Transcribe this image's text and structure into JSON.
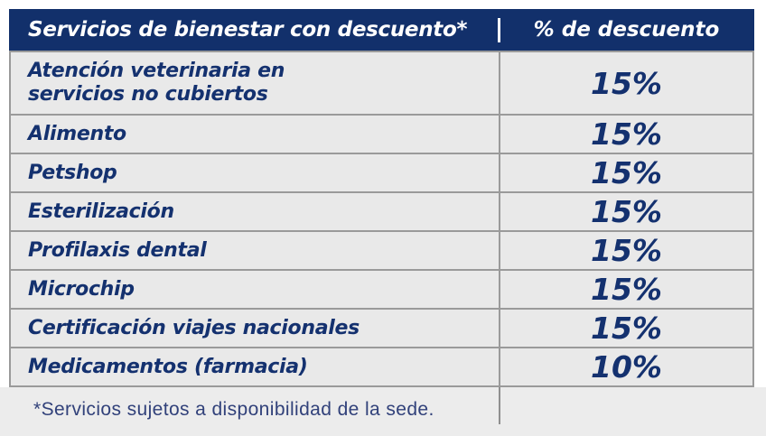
{
  "colors": {
    "header_bg": "#12306B",
    "header_text": "#FFFFFF",
    "row_bg": "#E9E9E9",
    "row_text": "#14316F",
    "border": "#9A9A9A",
    "footnote_bg": "#ECECEC",
    "footnote_text": "#31417A"
  },
  "table": {
    "columns": [
      {
        "label": "Servicios de bienestar con descuento*"
      },
      {
        "label": "% de descuento"
      }
    ],
    "rows": [
      {
        "service": "Atención veterinaria en\nservicios no cubiertos",
        "discount": "15%"
      },
      {
        "service": "Alimento",
        "discount": "15%"
      },
      {
        "service": "Petshop",
        "discount": "15%"
      },
      {
        "service": "Esterilización",
        "discount": "15%"
      },
      {
        "service": "Profilaxis dental",
        "discount": "15%"
      },
      {
        "service": "Microchip",
        "discount": "15%"
      },
      {
        "service": "Certificación viajes nacionales",
        "discount": "15%"
      },
      {
        "service": "Medicamentos (farmacia)",
        "discount": "10%"
      }
    ],
    "footnote": "*Servicios sujetos a disponibilidad de la sede."
  }
}
